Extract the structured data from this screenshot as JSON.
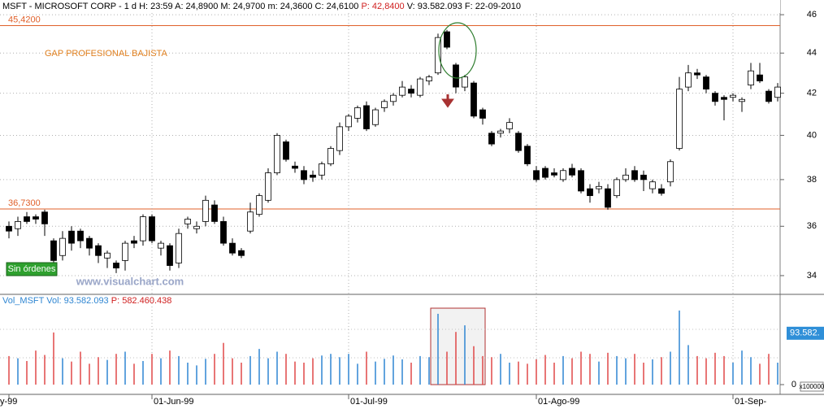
{
  "chart_data": {
    "type": "candlestick",
    "header": {
      "text": "MSFT - MICROSOFT CORP - 1 d H: 23:59 A: 24,8900 M: 24,9700 m: 24,3600 C: 24,6100",
      "price": "P: 42,8400",
      "rest": "V: 93.582.093 F: 22-09-2010"
    },
    "annotation": "GAP PROFESIONAL BAJISTA",
    "status": "Sin órdenes",
    "watermark": "www.visualchart.com",
    "categories": [
      "y-99",
      null,
      null,
      null,
      null,
      null,
      null,
      null,
      null,
      null,
      null,
      null,
      null,
      null,
      null,
      null,
      "01-Jun-99",
      null,
      null,
      null,
      null,
      null,
      null,
      null,
      null,
      null,
      null,
      null,
      null,
      null,
      null,
      null,
      null,
      null,
      null,
      null,
      null,
      null,
      "01-Jul-99",
      null,
      null,
      null,
      null,
      null,
      null,
      null,
      null,
      null,
      null,
      null,
      null,
      null,
      null,
      null,
      null,
      null,
      null,
      null,
      null,
      "01-Ago-99",
      null,
      null,
      null,
      null,
      null,
      null,
      null,
      null,
      null,
      null,
      null,
      null,
      null,
      null,
      null,
      null,
      null,
      null,
      null,
      null,
      null,
      "01-Sep-",
      null,
      null,
      null,
      null,
      null
    ],
    "open": [
      36.0,
      35.9,
      36.4,
      36.4,
      36.6,
      35.4,
      34.8,
      35.8,
      35.8,
      35.5,
      35.2,
      34.7,
      34.5,
      34.6,
      35.4,
      35.4,
      36.4,
      35.1,
      35.2,
      34.5,
      36.1,
      35.9,
      36.2,
      36.9,
      36.2,
      35.3,
      35.0,
      35.8,
      36.5,
      37.1,
      38.3,
      39.7,
      38.6,
      38.4,
      38.2,
      38.2,
      38.7,
      39.3,
      40.4,
      40.8,
      41.4,
      40.5,
      41.3,
      41.6,
      41.9,
      42.2,
      41.9,
      42.6,
      43.0,
      45.1,
      43.4,
      42.3,
      42.5,
      41.2,
      40.1,
      40.1,
      40.3,
      40.1,
      39.5,
      38.4,
      38.5,
      38.3,
      38.0,
      38.5,
      38.4,
      37.6,
      37.6,
      37.6,
      37.3,
      38.0,
      38.4,
      38.2,
      37.6,
      37.6,
      37.9,
      39.4,
      42.3,
      43.0,
      42.8,
      42.0,
      41.8,
      41.8,
      41.6,
      42.4,
      42.9,
      42.1,
      41.8
    ],
    "high": [
      36.2,
      36.4,
      36.6,
      36.5,
      36.7,
      35.5,
      35.8,
      36.0,
      35.9,
      35.6,
      35.3,
      35.0,
      34.6,
      35.4,
      35.6,
      36.5,
      36.5,
      35.4,
      35.3,
      35.9,
      36.4,
      36.2,
      37.3,
      37.1,
      36.4,
      35.5,
      35.1,
      37.0,
      37.4,
      38.5,
      40.1,
      39.8,
      38.8,
      38.6,
      38.4,
      38.8,
      39.5,
      40.6,
      41.0,
      41.4,
      41.6,
      41.3,
      41.7,
      42.0,
      42.6,
      42.4,
      42.8,
      42.9,
      45.0,
      45.2,
      43.5,
      42.9,
      42.6,
      41.3,
      40.2,
      40.3,
      40.8,
      40.2,
      39.6,
      38.6,
      38.6,
      38.5,
      38.5,
      38.7,
      38.5,
      37.8,
      37.9,
      37.8,
      38.1,
      38.5,
      38.6,
      38.4,
      38.0,
      37.8,
      38.9,
      42.8,
      43.4,
      43.2,
      42.9,
      42.1,
      41.9,
      42.0,
      41.8,
      43.5,
      43.5,
      42.2,
      42.5
    ],
    "low": [
      35.5,
      35.6,
      36.1,
      36.1,
      35.6,
      34.4,
      34.6,
      35.0,
      35.1,
      34.8,
      34.5,
      34.3,
      34.1,
      34.2,
      35.1,
      35.2,
      35.3,
      34.8,
      34.2,
      34.3,
      35.9,
      35.7,
      36.0,
      36.1,
      35.2,
      34.8,
      34.7,
      35.7,
      36.4,
      37.0,
      38.2,
      38.8,
      38.3,
      37.8,
      37.9,
      38.0,
      38.6,
      39.1,
      40.2,
      40.6,
      40.2,
      40.4,
      41.1,
      41.4,
      41.8,
      41.8,
      41.8,
      42.4,
      42.9,
      44.2,
      42.0,
      42.1,
      40.8,
      40.5,
      39.5,
      39.9,
      40.1,
      39.2,
      38.6,
      37.9,
      38.0,
      38.1,
      37.9,
      38.1,
      37.4,
      37.0,
      37.4,
      36.7,
      37.2,
      37.9,
      37.9,
      37.5,
      37.4,
      37.3,
      37.7,
      39.3,
      42.1,
      42.7,
      42.0,
      41.4,
      40.7,
      41.6,
      41.1,
      42.2,
      42.5,
      41.5,
      41.6
    ],
    "close": [
      35.8,
      36.2,
      36.2,
      36.3,
      36.1,
      34.6,
      35.5,
      35.3,
      35.4,
      35.1,
      34.8,
      34.9,
      34.3,
      35.3,
      35.3,
      36.4,
      35.4,
      35.3,
      34.4,
      35.7,
      36.3,
      36.0,
      37.1,
      36.2,
      35.3,
      34.9,
      34.8,
      36.6,
      37.3,
      38.3,
      40.0,
      38.9,
      38.5,
      38.0,
      38.1,
      38.7,
      39.4,
      40.4,
      40.9,
      41.3,
      40.3,
      41.2,
      41.6,
      41.9,
      42.3,
      42.0,
      42.7,
      42.8,
      44.8,
      44.3,
      42.3,
      42.8,
      40.9,
      40.8,
      39.6,
      40.2,
      40.6,
      39.3,
      38.7,
      38.0,
      38.1,
      38.2,
      38.4,
      38.2,
      37.5,
      37.3,
      37.7,
      36.8,
      38.0,
      38.2,
      38.0,
      38.0,
      37.9,
      37.4,
      38.8,
      42.2,
      43.0,
      42.9,
      42.2,
      41.6,
      41.7,
      41.9,
      41.7,
      43.1,
      42.6,
      41.6,
      42.3
    ],
    "ylim": [
      33.27,
      46.79
    ],
    "log": true,
    "yticks": [
      34,
      36,
      38,
      40,
      42,
      44,
      46
    ],
    "grid": true,
    "hlines": [
      {
        "value": 45.42,
        "label": "45,4200"
      },
      {
        "value": 36.73,
        "label": "36,7300"
      }
    ],
    "hline_color": "#e0602a",
    "up_fill": "#ffffff",
    "down_fill": "#000000",
    "volume_pane": {
      "name": "Vol_MSFT",
      "vol": "Vol: 93.582.093",
      "price": "P: 582.460.438",
      "unit": "x100000",
      "values": [
        520,
        480,
        430,
        620,
        540,
        950,
        480,
        420,
        600,
        380,
        500,
        450,
        560,
        600,
        380,
        430,
        560,
        480,
        620,
        520,
        400,
        350,
        470,
        560,
        760,
        480,
        400,
        520,
        650,
        480,
        600,
        560,
        420,
        400,
        480,
        530,
        560,
        500,
        560,
        380,
        600,
        420,
        470,
        530,
        460,
        400,
        520,
        500,
        1290,
        600,
        960,
        1080,
        700,
        520,
        500,
        560,
        400,
        420,
        380,
        460,
        540,
        400,
        520,
        480,
        600,
        560,
        420,
        580,
        520,
        480,
        560,
        400,
        460,
        500,
        600,
        1350,
        720,
        520,
        480,
        580,
        520,
        400,
        620,
        500,
        380,
        560,
        400
      ],
      "ylim": [
        0,
        1600
      ],
      "yticks": [
        0
      ],
      "last": {
        "value": 935.82,
        "label": "93.582."
      },
      "up_color": "#2f86d2",
      "down_color": "#e04848"
    }
  }
}
